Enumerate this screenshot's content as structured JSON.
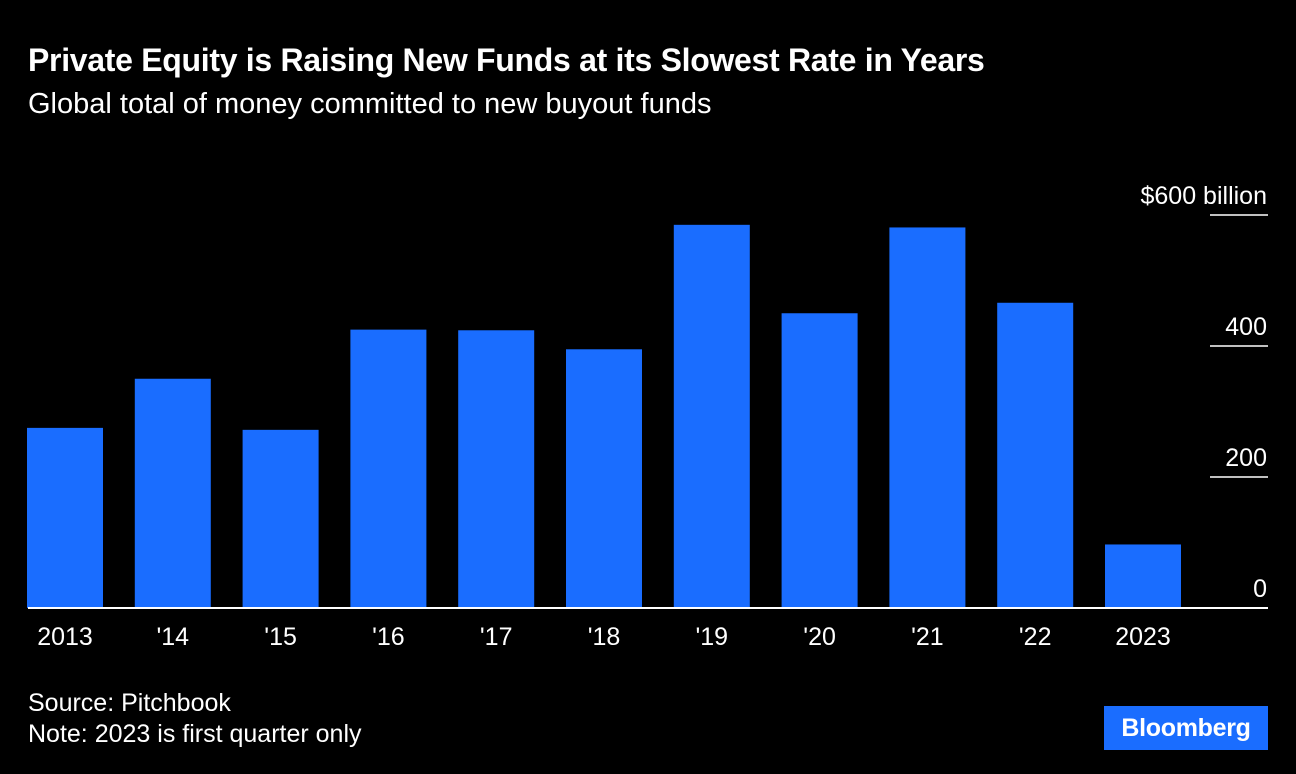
{
  "title": "Private Equity is Raising New Funds at its Slowest Rate in Years",
  "subtitle": "Global total of money committed to new buyout funds",
  "colors": {
    "background": "#000000",
    "bar": "#1a6dff",
    "text": "#ffffff",
    "logo_bg": "#1a6dff"
  },
  "chart_data": {
    "type": "bar",
    "categories": [
      "2013",
      "'14",
      "'15",
      "'16",
      "'17",
      "'18",
      "'19",
      "'20",
      "'21",
      "'22",
      "2023"
    ],
    "values": [
      275,
      350,
      272,
      425,
      424,
      395,
      585,
      450,
      581,
      466,
      97
    ],
    "ylim": [
      0,
      600
    ],
    "yticks": [
      {
        "value": 0,
        "label": "0"
      },
      {
        "value": 200,
        "label": "200"
      },
      {
        "value": 400,
        "label": "400"
      },
      {
        "value": 600,
        "label": "$600 billion"
      }
    ],
    "axis_position": "right",
    "grid": false,
    "legend": "none"
  },
  "footer": {
    "source": "Source: Pitchbook",
    "note": "Note: 2023 is first quarter only"
  },
  "logo": {
    "text": "Bloomberg"
  }
}
